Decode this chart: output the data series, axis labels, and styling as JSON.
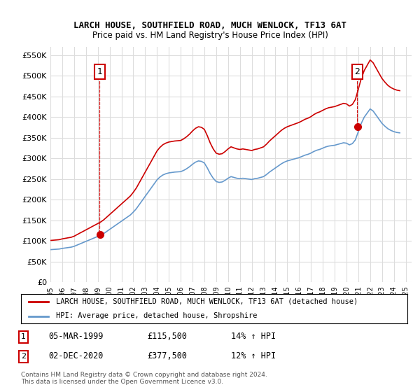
{
  "title": "LARCH HOUSE, SOUTHFIELD ROAD, MUCH WENLOCK, TF13 6AT",
  "subtitle": "Price paid vs. HM Land Registry's House Price Index (HPI)",
  "ylabel_ticks": [
    "£0",
    "£50K",
    "£100K",
    "£150K",
    "£200K",
    "£250K",
    "£300K",
    "£350K",
    "£400K",
    "£450K",
    "£500K",
    "£550K"
  ],
  "ytick_values": [
    0,
    50000,
    100000,
    150000,
    200000,
    250000,
    300000,
    350000,
    400000,
    450000,
    500000,
    550000
  ],
  "ylim": [
    0,
    570000
  ],
  "xlim_start": 1995.0,
  "xlim_end": 2025.5,
  "xtick_labels": [
    "1995",
    "1996",
    "1997",
    "1998",
    "1999",
    "2000",
    "2001",
    "2002",
    "2003",
    "2004",
    "2005",
    "2006",
    "2007",
    "2008",
    "2009",
    "2010",
    "2011",
    "2012",
    "2013",
    "2014",
    "2015",
    "2016",
    "2017",
    "2018",
    "2019",
    "2020",
    "2021",
    "2022",
    "2023",
    "2024",
    "2025"
  ],
  "legend_line1": "LARCH HOUSE, SOUTHFIELD ROAD, MUCH WENLOCK, TF13 6AT (detached house)",
  "legend_line2": "HPI: Average price, detached house, Shropshire",
  "sale1_label": "1",
  "sale1_date": "05-MAR-1999",
  "sale1_price": "£115,500",
  "sale1_hpi": "14% ↑ HPI",
  "sale2_label": "2",
  "sale2_date": "02-DEC-2020",
  "sale2_price": "£377,500",
  "sale2_hpi": "12% ↑ HPI",
  "footnote": "Contains HM Land Registry data © Crown copyright and database right 2024.\nThis data is licensed under the Open Government Licence v3.0.",
  "sale_color": "#cc0000",
  "hpi_color": "#6699cc",
  "bg_color": "#ffffff",
  "grid_color": "#dddddd",
  "sale1_x": 1999.17,
  "sale1_y": 115500,
  "sale2_x": 2020.92,
  "sale2_y": 377500,
  "hpi_data_x": [
    1995.0,
    1995.25,
    1995.5,
    1995.75,
    1996.0,
    1996.25,
    1996.5,
    1996.75,
    1997.0,
    1997.25,
    1997.5,
    1997.75,
    1998.0,
    1998.25,
    1998.5,
    1998.75,
    1999.0,
    1999.25,
    1999.5,
    1999.75,
    2000.0,
    2000.25,
    2000.5,
    2000.75,
    2001.0,
    2001.25,
    2001.5,
    2001.75,
    2002.0,
    2002.25,
    2002.5,
    2002.75,
    2003.0,
    2003.25,
    2003.5,
    2003.75,
    2004.0,
    2004.25,
    2004.5,
    2004.75,
    2005.0,
    2005.25,
    2005.5,
    2005.75,
    2006.0,
    2006.25,
    2006.5,
    2006.75,
    2007.0,
    2007.25,
    2007.5,
    2007.75,
    2008.0,
    2008.25,
    2008.5,
    2008.75,
    2009.0,
    2009.25,
    2009.5,
    2009.75,
    2010.0,
    2010.25,
    2010.5,
    2010.75,
    2011.0,
    2011.25,
    2011.5,
    2011.75,
    2012.0,
    2012.25,
    2012.5,
    2012.75,
    2013.0,
    2013.25,
    2013.5,
    2013.75,
    2014.0,
    2014.25,
    2014.5,
    2014.75,
    2015.0,
    2015.25,
    2015.5,
    2015.75,
    2016.0,
    2016.25,
    2016.5,
    2016.75,
    2017.0,
    2017.25,
    2017.5,
    2017.75,
    2018.0,
    2018.25,
    2018.5,
    2018.75,
    2019.0,
    2019.25,
    2019.5,
    2019.75,
    2020.0,
    2020.25,
    2020.5,
    2020.75,
    2021.0,
    2021.25,
    2021.5,
    2021.75,
    2022.0,
    2022.25,
    2022.5,
    2022.75,
    2023.0,
    2023.25,
    2023.5,
    2023.75,
    2024.0,
    2024.25,
    2024.5
  ],
  "hpi_data_y": [
    79000,
    79500,
    80000,
    80500,
    82000,
    83000,
    84000,
    85000,
    87000,
    90000,
    93000,
    96000,
    99000,
    102000,
    105000,
    108000,
    111000,
    114000,
    118000,
    123000,
    128000,
    133000,
    138000,
    143000,
    148000,
    153000,
    158000,
    163000,
    170000,
    178000,
    188000,
    198000,
    208000,
    218000,
    228000,
    238000,
    248000,
    255000,
    260000,
    263000,
    265000,
    266000,
    267000,
    267500,
    268000,
    271000,
    275000,
    280000,
    286000,
    291000,
    294000,
    293000,
    289000,
    277000,
    263000,
    252000,
    244000,
    242000,
    243000,
    247000,
    252000,
    256000,
    254000,
    252000,
    251000,
    252000,
    251000,
    250000,
    249000,
    251000,
    252000,
    254000,
    256000,
    261000,
    267000,
    272000,
    277000,
    282000,
    287000,
    291000,
    294000,
    296000,
    298000,
    300000,
    302000,
    305000,
    308000,
    310000,
    313000,
    317000,
    320000,
    322000,
    325000,
    328000,
    330000,
    331000,
    332000,
    334000,
    336000,
    338000,
    337000,
    333000,
    336000,
    345000,
    365000,
    385000,
    400000,
    410000,
    420000,
    415000,
    405000,
    395000,
    385000,
    378000,
    372000,
    368000,
    365000,
    363000,
    362000
  ],
  "hpi_indexed_x": [
    1995.0,
    1995.25,
    1995.5,
    1995.75,
    1996.0,
    1996.25,
    1996.5,
    1996.75,
    1997.0,
    1997.25,
    1997.5,
    1997.75,
    1998.0,
    1998.25,
    1998.5,
    1998.75,
    1999.0,
    1999.25,
    1999.5,
    1999.75,
    2000.0,
    2000.25,
    2000.5,
    2000.75,
    2001.0,
    2001.25,
    2001.5,
    2001.75,
    2002.0,
    2002.25,
    2002.5,
    2002.75,
    2003.0,
    2003.25,
    2003.5,
    2003.75,
    2004.0,
    2004.25,
    2004.5,
    2004.75,
    2005.0,
    2005.25,
    2005.5,
    2005.75,
    2006.0,
    2006.25,
    2006.5,
    2006.75,
    2007.0,
    2007.25,
    2007.5,
    2007.75,
    2008.0,
    2008.25,
    2008.5,
    2008.75,
    2009.0,
    2009.25,
    2009.5,
    2009.75,
    2010.0,
    2010.25,
    2010.5,
    2010.75,
    2011.0,
    2011.25,
    2011.5,
    2011.75,
    2012.0,
    2012.25,
    2012.5,
    2012.75,
    2013.0,
    2013.25,
    2013.5,
    2013.75,
    2014.0,
    2014.25,
    2014.5,
    2014.75,
    2015.0,
    2015.25,
    2015.5,
    2015.75,
    2016.0,
    2016.25,
    2016.5,
    2016.75,
    2017.0,
    2017.25,
    2017.5,
    2017.75,
    2018.0,
    2018.25,
    2018.5,
    2018.75,
    2019.0,
    2019.25,
    2019.5,
    2019.75,
    2020.0,
    2020.25,
    2020.5,
    2020.75,
    2021.0,
    2021.25,
    2021.5,
    2021.75,
    2022.0,
    2022.25,
    2022.5,
    2022.75,
    2023.0,
    2023.25,
    2023.5,
    2023.75,
    2024.0,
    2024.25,
    2024.5
  ],
  "hpi_indexed_y": [
    101300,
    101900,
    102500,
    103200,
    105100,
    106400,
    107700,
    108900,
    111500,
    115400,
    119300,
    123000,
    126900,
    130700,
    134600,
    138400,
    142200,
    146100,
    151200,
    157600,
    164000,
    170400,
    176800,
    183300,
    189700,
    196100,
    202500,
    209000,
    217900,
    228100,
    240900,
    253800,
    266600,
    279500,
    292300,
    305200,
    318000,
    326900,
    333300,
    337200,
    339800,
    341100,
    342300,
    342900,
    343600,
    347400,
    352600,
    358900,
    366600,
    373000,
    376800,
    375500,
    370500,
    355100,
    337200,
    323100,
    312800,
    310300,
    311500,
    316600,
    323100,
    328200,
    325600,
    323100,
    321800,
    323100,
    321800,
    320500,
    319200,
    321800,
    323100,
    325600,
    328200,
    334600,
    342300,
    348700,
    355100,
    361600,
    368000,
    373000,
    376800,
    379500,
    382100,
    384700,
    387400,
    391000,
    395000,
    397600,
    401200,
    406400,
    410300,
    413000,
    416700,
    420300,
    423000,
    424300,
    425700,
    428300,
    430900,
    433500,
    432200,
    427000,
    430900,
    442700,
    467900,
    493700,
    513000,
    525800,
    538600,
    532000,
    519200,
    506400,
    493700,
    484800,
    477000,
    471800,
    468200,
    465600,
    464200
  ]
}
